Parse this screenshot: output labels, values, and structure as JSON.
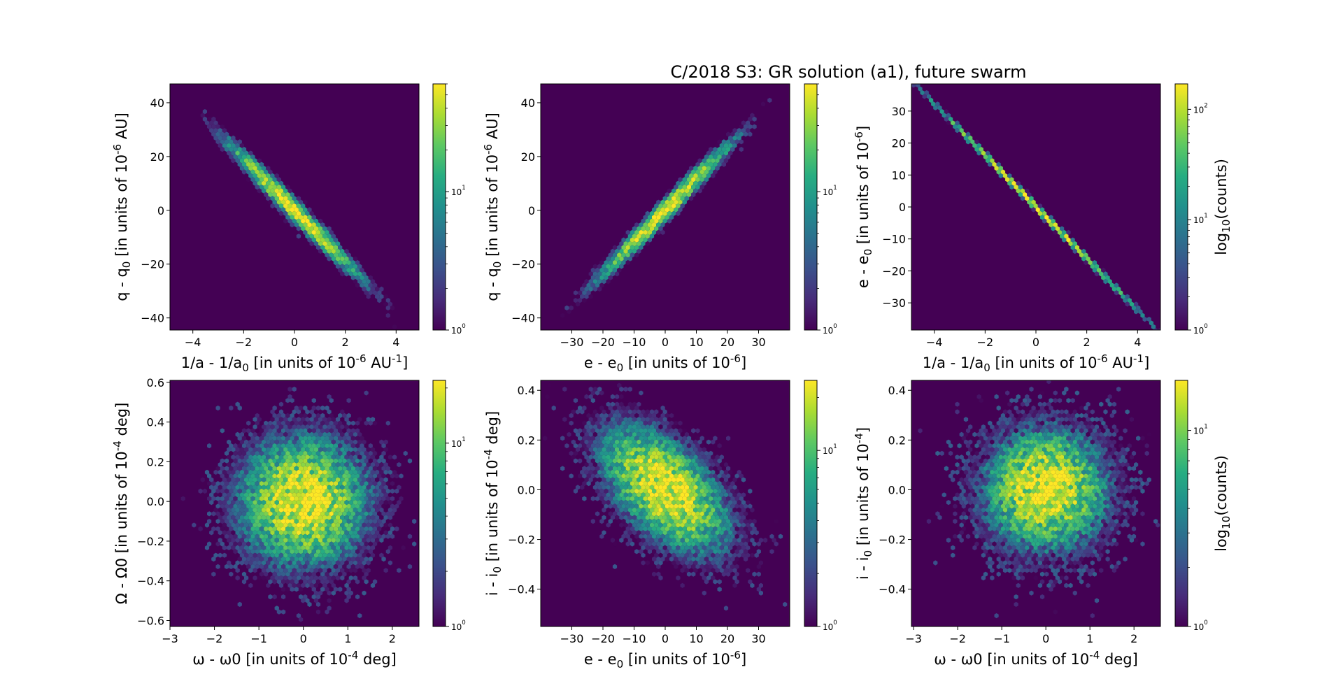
{
  "figure_title": "C/2018 S3: GR solution (a1), future swarm",
  "colormap": {
    "name": "viridis",
    "background": "#440154",
    "max_color": "#fde725"
  },
  "chart_data": [
    {
      "type": "heatmap",
      "kind": "hexbin-loglog",
      "xlabel": "1/a - 1/a0 [in units of 10^-6 AU^-1]",
      "ylabel": "q - q0 [in units of 10^-6 AU]",
      "xlim": [
        -4.9,
        4.9
      ],
      "ylim": [
        -44.5,
        47
      ],
      "xticks": [
        -4,
        -2,
        0,
        2,
        4
      ],
      "yticks": [
        -40,
        -20,
        0,
        20,
        40
      ],
      "correlation": -0.985,
      "sx": 1.3,
      "sy": 12.5,
      "count_max": 60,
      "colorbar": {
        "ticks": [
          "10^0",
          "10^1"
        ],
        "max": 60,
        "label": ""
      }
    },
    {
      "type": "heatmap",
      "kind": "hexbin-loglog",
      "xlabel": "e - e0 [in units of 10^-6]",
      "ylabel": "q - q0 [in units of 10^-6 AU]",
      "xlim": [
        -40,
        40
      ],
      "ylim": [
        -44.5,
        47
      ],
      "xticks": [
        -30,
        -20,
        -10,
        0,
        10,
        20,
        30
      ],
      "yticks": [
        -40,
        -20,
        0,
        20,
        40
      ],
      "correlation": 0.985,
      "sx": 10.5,
      "sy": 12.5,
      "count_max": 60,
      "colorbar": {
        "ticks": [
          "10^0",
          "10^1"
        ],
        "max": 60,
        "label": ""
      }
    },
    {
      "type": "heatmap",
      "kind": "hexbin-loglog",
      "xlabel": "1/a - 1/a0 [in units of 10^-6 AU^-1]",
      "ylabel": "e - e0 [in units of 10^-6]",
      "xlim": [
        -4.9,
        4.9
      ],
      "ylim": [
        -38.5,
        38.5
      ],
      "xticks": [
        -4,
        -2,
        0,
        2,
        4
      ],
      "yticks": [
        -30,
        -20,
        -10,
        0,
        10,
        20,
        30
      ],
      "correlation": -0.9999,
      "sx": 1.3,
      "sy": 10.5,
      "count_max": 170,
      "colorbar": {
        "ticks": [
          "10^0",
          "10^1",
          "10^2"
        ],
        "max": 170,
        "label": "log10(counts)"
      }
    },
    {
      "type": "heatmap",
      "kind": "hexbin-loglog",
      "xlabel": "ω - ω0 [in units of 10^-4 deg]",
      "ylabel": "Ω - Ω0 [in units of 10^-4 deg]",
      "xlim": [
        -3.0,
        2.6
      ],
      "ylim": [
        -0.63,
        0.61
      ],
      "xticks": [
        -3,
        -2,
        -1,
        0,
        1,
        2
      ],
      "yticks": [
        -0.6,
        -0.4,
        -0.2,
        0.0,
        0.2,
        0.4,
        0.6
      ],
      "correlation": 0.0,
      "sx": 0.75,
      "sy": 0.17,
      "count_max": 22,
      "colorbar": {
        "ticks": [
          "10^0",
          "10^1"
        ],
        "max": 22,
        "label": ""
      }
    },
    {
      "type": "heatmap",
      "kind": "hexbin-loglog",
      "xlabel": "e - e0 [in units of 10^-6]",
      "ylabel": "i - i0 [in units of 10^-4 deg]",
      "xlim": [
        -40,
        40
      ],
      "ylim": [
        -0.55,
        0.44
      ],
      "xticks": [
        -30,
        -20,
        -10,
        0,
        10,
        20,
        30
      ],
      "yticks": [
        -0.4,
        -0.2,
        0.0,
        0.2,
        0.4
      ],
      "correlation": -0.55,
      "sx": 10.5,
      "sy": 0.13,
      "count_max": 25,
      "colorbar": {
        "ticks": [
          "10^0",
          "10^1"
        ],
        "max": 25,
        "label": ""
      }
    },
    {
      "type": "heatmap",
      "kind": "hexbin-loglog",
      "xlabel": "ω - ω0 [in units of 10^-4 deg]",
      "ylabel": "i - i0 [in units of 10^-4]",
      "xlim": [
        -3.05,
        2.6
      ],
      "ylim": [
        -0.55,
        0.44
      ],
      "xticks": [
        -3,
        -2,
        -1,
        0,
        1,
        2
      ],
      "yticks": [
        -0.4,
        -0.2,
        0.0,
        0.2,
        0.4
      ],
      "correlation": 0.0,
      "sx": 0.75,
      "sy": 0.13,
      "count_max": 18,
      "colorbar": {
        "ticks": [
          "10^0",
          "10^1"
        ],
        "max": 18,
        "label": "log10(counts)"
      }
    }
  ]
}
